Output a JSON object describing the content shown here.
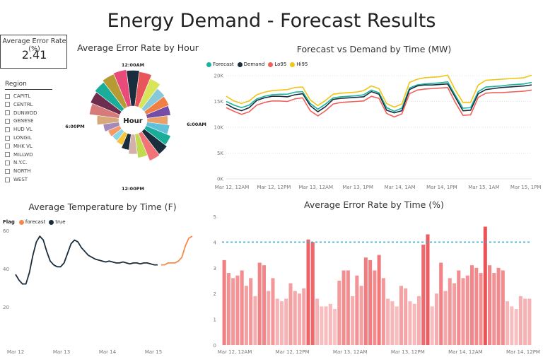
{
  "page": {
    "title": "Energy Demand - Forecast Results"
  },
  "kpi": {
    "label": "Average Error Rate (%)",
    "value": "2.41"
  },
  "slicer": {
    "title": "Region",
    "items": [
      "CAPITL",
      "CENTRL",
      "DUNWOD",
      "GENESE",
      "HUD VL",
      "LONGIL",
      "MHK VL",
      "MILLWD",
      "N.Y.C.",
      "NORTH",
      "WEST"
    ]
  },
  "chart_data": [
    {
      "id": "radial",
      "type": "bar",
      "title": "Average Error Rate by Hour",
      "center_label": "Hour",
      "tick_labels": [
        "12:00AM",
        "6:00AM",
        "12:00PM",
        "6:00PM"
      ],
      "categories": [
        "0",
        "1",
        "2",
        "3",
        "4",
        "5",
        "6",
        "7",
        "8",
        "9",
        "10",
        "11",
        "12",
        "13",
        "14",
        "15",
        "16",
        "17",
        "18",
        "19",
        "20",
        "21",
        "22",
        "23"
      ],
      "values": [
        3.6,
        3.5,
        3.1,
        2.6,
        2.5,
        2.4,
        2.1,
        2.3,
        2.7,
        2.9,
        3.0,
        2.4,
        2.0,
        1.6,
        1.3,
        1.2,
        1.3,
        1.6,
        2.2,
        3.0,
        3.2,
        3.4,
        3.6,
        3.7
      ],
      "colors": [
        "#1A2D3C",
        "#E8565C",
        "#D8E55A",
        "#88C8D9",
        "#F17F44",
        "#744DA6",
        "#E9A06A",
        "#62C0DA",
        "#1AAE9A",
        "#1A2D3C",
        "#F27478",
        "#C2DB4E",
        "#D3B0AA",
        "#1A2D3C",
        "#F7C43A",
        "#8AD4E8",
        "#F59A66",
        "#A28ABD",
        "#D6A87A",
        "#D67A7A",
        "#6E2C4F",
        "#1AAE9A",
        "#B69A34",
        "#E84B7A"
      ]
    },
    {
      "id": "forecast",
      "type": "line",
      "title": "Forecast vs Demand by Time (MW)",
      "x_tick_labels": [
        "Mar 12, 12AM",
        "Mar 12, 12PM",
        "Mar 13, 12AM",
        "Mar 13, 1PM",
        "Mar 14, 1AM",
        "Mar 14, 1PM",
        "Mar 15, 1AM",
        "Mar 15, 1PM"
      ],
      "y_tick_labels": [
        "0K",
        "5K",
        "10K",
        "15K",
        "20K"
      ],
      "ylim": [
        0,
        20000
      ],
      "series": [
        {
          "name": "Forecast",
          "color": "#1AB39F",
          "values": [
            15000,
            14300,
            13800,
            14300,
            15500,
            16000,
            16300,
            16400,
            16400,
            16800,
            16900,
            14600,
            13500,
            14500,
            15700,
            15900,
            16000,
            16100,
            16300,
            17200,
            16700,
            13800,
            13100,
            13700,
            17600,
            18200,
            18400,
            18500,
            18600,
            18800,
            16200,
            13700,
            13800,
            16900,
            17800,
            17900,
            18000,
            18200,
            18300,
            18400,
            18700
          ]
        },
        {
          "name": "Demand",
          "color": "#1A2D3C",
          "values": [
            14500,
            13700,
            13200,
            13800,
            15200,
            15700,
            16000,
            16000,
            15900,
            16300,
            16500,
            14200,
            13000,
            14000,
            15400,
            15600,
            15700,
            15800,
            15900,
            16900,
            16400,
            13300,
            12800,
            13200,
            17300,
            18000,
            18200,
            18200,
            18300,
            18400,
            15800,
            13200,
            13300,
            16500,
            17300,
            17500,
            17700,
            17800,
            17900,
            18000,
            18200
          ]
        },
        {
          "name": "Lo95",
          "color": "#F0615B",
          "values": [
            13800,
            13100,
            12500,
            13000,
            14300,
            14800,
            15100,
            15100,
            15000,
            15500,
            15700,
            13200,
            12200,
            13200,
            14500,
            14800,
            14900,
            15000,
            15100,
            16000,
            15600,
            12700,
            12000,
            12600,
            16500,
            17200,
            17400,
            17500,
            17600,
            17700,
            14800,
            12300,
            12400,
            15800,
            16600,
            16700,
            16700,
            16800,
            16900,
            17000,
            17200
          ]
        },
        {
          "name": "Hi95",
          "color": "#F2C414",
          "values": [
            16000,
            15100,
            14600,
            15100,
            16300,
            16800,
            17100,
            17200,
            17300,
            17700,
            17800,
            15300,
            14200,
            15200,
            16400,
            16600,
            16700,
            16800,
            17100,
            18000,
            17500,
            14600,
            13900,
            14500,
            18700,
            19300,
            19600,
            19700,
            19800,
            20100,
            17200,
            14800,
            14800,
            18200,
            19100,
            19200,
            19300,
            19400,
            19500,
            19600,
            20100
          ]
        }
      ]
    },
    {
      "id": "temperature",
      "type": "line",
      "title": "Average Temperature by Time (F)",
      "legend_title": "Flag",
      "x_tick_labels": [
        "Mar 12",
        "Mar 13",
        "Mar 14",
        "Mar 15"
      ],
      "y_tick_labels": [
        "20",
        "40",
        "60"
      ],
      "ylim": [
        0,
        60
      ],
      "series": [
        {
          "name": "forecast",
          "color": "#F58A4B",
          "values": [
            null,
            null,
            null,
            null,
            null,
            null,
            null,
            null,
            null,
            null,
            null,
            null,
            null,
            null,
            null,
            null,
            null,
            null,
            null,
            null,
            null,
            null,
            null,
            null,
            null,
            null,
            null,
            null,
            null,
            null,
            null,
            null,
            null,
            null,
            null,
            null,
            null,
            null,
            null,
            null,
            null,
            null,
            42,
            42,
            43,
            43,
            43,
            44,
            46,
            52,
            56,
            57
          ]
        },
        {
          "name": "true",
          "color": "#1A2D3C",
          "values": [
            37,
            34,
            32,
            32,
            38,
            47,
            54,
            57,
            55,
            49,
            44,
            42,
            41,
            41,
            43,
            48,
            53,
            55,
            54,
            51,
            49,
            47,
            46,
            45,
            44.5,
            44,
            43.5,
            44,
            43.5,
            43,
            43,
            43.5,
            43,
            42.5,
            43,
            43,
            42.5,
            43,
            43,
            42.5,
            42,
            42,
            null,
            null,
            null,
            null,
            null,
            null,
            null,
            null,
            null,
            null
          ]
        }
      ]
    },
    {
      "id": "errorbars",
      "type": "bar",
      "title": "Average Error Rate by Time (%)",
      "x_tick_labels": [
        "Mar 12, 12AM",
        "Mar 12, 12PM",
        "Mar 13, 12AM",
        "Mar 13, 12PM",
        "Mar 14, 12AM",
        "Mar 14, 12PM"
      ],
      "y_tick_labels": [
        "0",
        "1",
        "2",
        "3",
        "4",
        "5"
      ],
      "ylim": [
        0,
        5
      ],
      "reference_line": 4.0,
      "values": [
        3.3,
        2.8,
        2.6,
        2.7,
        2.9,
        2.3,
        2.6,
        1.9,
        3.2,
        3.1,
        2.1,
        2.6,
        1.8,
        1.7,
        1.8,
        2.4,
        2.1,
        2.0,
        2.2,
        4.1,
        4.0,
        1.8,
        1.5,
        1.5,
        1.6,
        1.4,
        2.5,
        2.9,
        2.9,
        1.9,
        2.7,
        2.3,
        3.4,
        3.3,
        2.9,
        3.5,
        2.6,
        1.8,
        1.7,
        1.5,
        2.3,
        2.2,
        1.7,
        1.6,
        1.9,
        3.9,
        4.3,
        1.5,
        2.0,
        3.2,
        2.1,
        2.6,
        2.4,
        2.9,
        2.6,
        2.7,
        3.1,
        3.0,
        2.8,
        4.6,
        3.1,
        2.8,
        3.0,
        2.9,
        1.7,
        1.5,
        1.4,
        1.9,
        1.8,
        1.8
      ]
    }
  ]
}
